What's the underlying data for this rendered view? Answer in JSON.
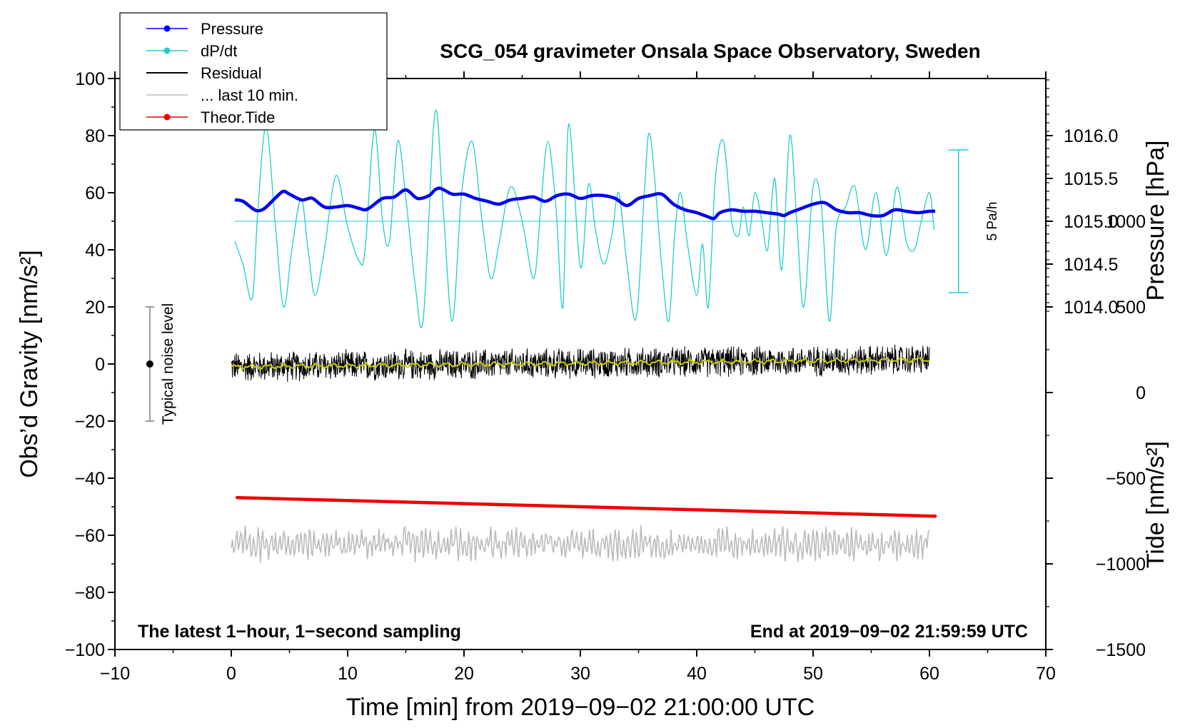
{
  "chart_data": {
    "type": "line",
    "title": "SCG_054 gravimeter Onsala Space Observatory, Sweden",
    "xlabel": "Time [min] from 2019−09−02 21:00:00 UTC",
    "ylabel_left": "Obs’d Gravity [nm/s²]",
    "ylabel_right_top": "Pressure [hPa]",
    "ylabel_right_bottom": "Tide [nm/s²]",
    "xlim": [
      -10,
      70
    ],
    "ylim_left": [
      -100,
      100
    ],
    "x_ticks": [
      -10,
      0,
      10,
      20,
      30,
      40,
      50,
      60,
      70
    ],
    "x_tick_labels": [
      "−10",
      "0",
      "10",
      "20",
      "30",
      "40",
      "50",
      "60",
      "70"
    ],
    "y_ticks_left": [
      100,
      80,
      60,
      40,
      20,
      0,
      -20,
      -40,
      -60,
      -80,
      -100
    ],
    "y_tick_labels_left": [
      "100",
      "80",
      "60",
      "40",
      "20",
      "0",
      "−20",
      "−40",
      "−60",
      "−80",
      "−100"
    ],
    "pressure_ticks": [
      1016.0,
      1015.5,
      1015.0,
      1014.5,
      1014.0
    ],
    "pressure_tick_labels": [
      "1016.0",
      "1015.5",
      "1015.0",
      "1014.5",
      "1014.0"
    ],
    "pressure_axis": {
      "value_at_y_left_50": 1015.0,
      "hpa_per_y_left_unit": 0.03333
    },
    "tide_ticks": [
      1000,
      500,
      0,
      -500,
      -1000,
      -1500
    ],
    "tide_tick_labels": [
      "1000",
      "500",
      "0",
      "−500",
      "−1000",
      "−1500"
    ],
    "tide_axis": {
      "value_at_y_left_minus_100": -1500,
      "nm_per_y_left_unit": 0.06
    },
    "bottom_left_note": "The latest 1−hour, 1−second sampling",
    "bottom_right_note": "End at 2019−09−02 21:59:59 UTC",
    "noise_bar": {
      "label": "Typical noise level",
      "x": -7,
      "center": 0,
      "low": -20,
      "high": 20
    },
    "dpdt_scale_bar": {
      "label": "5 Pa/h",
      "x": 62.5,
      "center": 50,
      "low": 25,
      "high": 75
    },
    "legend": [
      {
        "name": "Pressure",
        "color": "#0000ee",
        "marker": true
      },
      {
        "name": "dP/dt",
        "color": "#22cccc",
        "marker": true
      },
      {
        "name": "Residual",
        "color": "#000000",
        "marker": false
      },
      {
        "name": "... last 10 min.",
        "color": "#bbbbbb",
        "marker": false
      },
      {
        "name": "Theor.Tide",
        "color": "#ee0000",
        "marker": true
      }
    ],
    "series": [
      {
        "name": "Pressure",
        "color": "#0000ee",
        "x": [
          0.3,
          1,
          2,
          2.5,
          3,
          4,
          4.5,
          5,
          6,
          6.5,
          7,
          8,
          9,
          10,
          11,
          11.5,
          12,
          13,
          14,
          15,
          16,
          17,
          17.5,
          18,
          19,
          20,
          21,
          22,
          23,
          24,
          25,
          26,
          27,
          28,
          29,
          30,
          31,
          32,
          33,
          34,
          35,
          36,
          37,
          38,
          39,
          40,
          41,
          41.5,
          42,
          43,
          44,
          45,
          46,
          47,
          47.5,
          48,
          49,
          50,
          51,
          52,
          53,
          54,
          55,
          56,
          57,
          58,
          59,
          60,
          60.5
        ],
        "y": [
          57.5,
          57,
          54,
          53.8,
          55,
          59,
          60.5,
          59.5,
          57.5,
          57.8,
          58,
          55,
          55,
          55.5,
          54.5,
          54,
          55,
          58,
          58.5,
          61,
          58,
          59,
          61,
          61.5,
          59.5,
          59.5,
          58,
          57,
          56,
          57.5,
          58,
          58.5,
          57,
          59,
          59.5,
          58,
          59,
          59,
          58,
          55.5,
          58,
          59,
          59.5,
          56,
          54,
          53,
          51.5,
          51,
          53,
          54,
          53.5,
          53.5,
          53,
          52.5,
          52,
          53,
          54.5,
          56,
          56.5,
          54,
          53,
          53,
          52,
          52,
          54,
          53.5,
          53,
          53.5,
          53.5
        ]
      },
      {
        "name": "dP/dt",
        "color": "#22cccc",
        "x": [
          0.3,
          1,
          1.8,
          2.3,
          3,
          3.8,
          4.5,
          5.2,
          6,
          6.6,
          7.2,
          8,
          9,
          10,
          11,
          11.5,
          12.3,
          13,
          13.6,
          14.3,
          15,
          15.8,
          16.5,
          17.5,
          18.2,
          19,
          19.8,
          20.7,
          21.5,
          22.3,
          23,
          24,
          25,
          26,
          26.6,
          27.2,
          27.9,
          28.5,
          29,
          30,
          30.7,
          31.3,
          32,
          32.7,
          33.3,
          34,
          34.8,
          35.5,
          36,
          37,
          37.6,
          38.1,
          38.6,
          39.2,
          40,
          40.5,
          41,
          41.6,
          42.3,
          43,
          43.6,
          44,
          44.5,
          45,
          45.6,
          46.1,
          46.7,
          47.3,
          48,
          48.6,
          49.2,
          50,
          50.7,
          51.4,
          52,
          52.8,
          53.6,
          54.5,
          55.4,
          56.3,
          57.2,
          58,
          58.7,
          59.3,
          60,
          60.4
        ],
        "y": [
          43,
          35,
          23,
          55,
          83,
          48,
          20,
          40,
          58,
          40,
          24,
          40,
          66,
          48,
          36,
          40,
          82,
          50,
          43,
          78,
          58,
          28,
          16,
          88,
          55,
          15,
          60,
          78,
          52,
          30,
          42,
          62,
          50,
          30,
          55,
          78,
          55,
          20,
          84,
          34,
          63,
          47,
          35,
          45,
          60,
          35,
          16,
          60,
          80,
          34,
          15,
          45,
          60,
          42,
          24,
          42,
          20,
          65,
          78,
          50,
          45,
          55,
          45,
          60,
          50,
          40,
          65,
          33,
          80,
          50,
          20,
          62,
          56,
          15,
          48,
          55,
          62,
          40,
          60,
          38,
          62,
          43,
          40,
          50,
          60,
          47
        ]
      },
      {
        "name": "Residual",
        "color": "#000000",
        "x_range": [
          0,
          60
        ],
        "mean": 0,
        "amplitude": 6,
        "smoothed_trend": {
          "color": "#cccc00",
          "start": -1,
          "end": 1.5
        }
      },
      {
        "name": "Theor.Tide",
        "color": "#ee0000",
        "x": [
          0.5,
          60.5
        ],
        "y": [
          -46.8,
          -53.3
        ]
      },
      {
        "name": "... last 10 min.",
        "color": "#bbbbbb",
        "x_range": [
          0,
          60
        ],
        "mean": -63,
        "amplitude": 6
      }
    ]
  }
}
